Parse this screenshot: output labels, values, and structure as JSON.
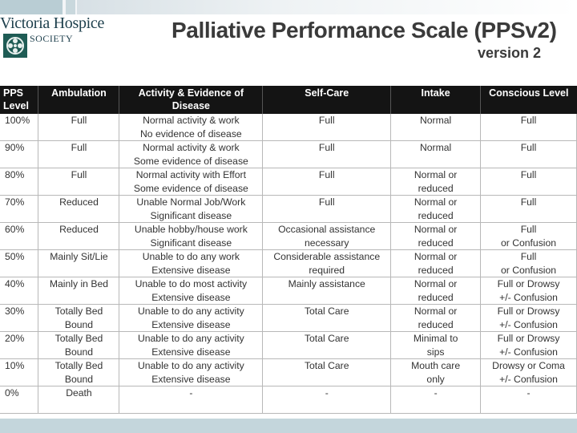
{
  "logo": {
    "name": "Victoria Hospice",
    "society": "SOCIETY",
    "emblem": "hospice-emblem-icon"
  },
  "title": "Palliative Performance Scale (PPSv2)",
  "subtitle": "version 2",
  "table": {
    "headers": [
      [
        "PPS",
        "Level"
      ],
      [
        "Ambulation",
        ""
      ],
      [
        "Activity & Evidence of",
        "Disease"
      ],
      [
        "Self-Care",
        ""
      ],
      [
        "Intake",
        ""
      ],
      [
        "Conscious Level",
        ""
      ]
    ],
    "rows": [
      [
        [
          "100%",
          ""
        ],
        [
          "Full",
          ""
        ],
        [
          "Normal activity & work",
          "No evidence of disease"
        ],
        [
          "Full",
          ""
        ],
        [
          "Normal",
          ""
        ],
        [
          "Full",
          ""
        ]
      ],
      [
        [
          "90%",
          ""
        ],
        [
          "Full",
          ""
        ],
        [
          "Normal activity & work",
          "Some evidence of disease"
        ],
        [
          "Full",
          ""
        ],
        [
          "Normal",
          ""
        ],
        [
          "Full",
          ""
        ]
      ],
      [
        [
          "80%",
          ""
        ],
        [
          "Full",
          ""
        ],
        [
          "Normal activity with Effort",
          "Some evidence of disease"
        ],
        [
          "Full",
          ""
        ],
        [
          "Normal or",
          "reduced"
        ],
        [
          "Full",
          ""
        ]
      ],
      [
        [
          "70%",
          ""
        ],
        [
          "Reduced",
          ""
        ],
        [
          "Unable Normal Job/Work",
          "Significant disease"
        ],
        [
          "Full",
          ""
        ],
        [
          "Normal or",
          "reduced"
        ],
        [
          "Full",
          ""
        ]
      ],
      [
        [
          "60%",
          ""
        ],
        [
          "Reduced",
          ""
        ],
        [
          "Unable hobby/house work",
          "Significant disease"
        ],
        [
          "Occasional assistance",
          "necessary"
        ],
        [
          "Normal or",
          "reduced"
        ],
        [
          "Full",
          "or Confusion"
        ]
      ],
      [
        [
          "50%",
          ""
        ],
        [
          "Mainly Sit/Lie",
          ""
        ],
        [
          "Unable to do any work",
          "Extensive disease"
        ],
        [
          "Considerable assistance",
          "required"
        ],
        [
          "Normal or",
          "reduced"
        ],
        [
          "Full",
          "or Confusion"
        ]
      ],
      [
        [
          "40%",
          ""
        ],
        [
          "Mainly in Bed",
          ""
        ],
        [
          "Unable to do most activity",
          "Extensive disease"
        ],
        [
          "Mainly assistance",
          ""
        ],
        [
          "Normal or",
          "reduced"
        ],
        [
          "Full or Drowsy",
          "+/- Confusion"
        ]
      ],
      [
        [
          "30%",
          ""
        ],
        [
          "Totally Bed",
          "Bound"
        ],
        [
          "Unable to do any activity",
          "Extensive disease"
        ],
        [
          "Total Care",
          ""
        ],
        [
          "Normal or",
          "reduced"
        ],
        [
          "Full or Drowsy",
          "+/- Confusion"
        ]
      ],
      [
        [
          "20%",
          ""
        ],
        [
          "Totally Bed",
          "Bound"
        ],
        [
          "Unable to do any activity",
          "Extensive disease"
        ],
        [
          "Total Care",
          ""
        ],
        [
          "Minimal to",
          "sips"
        ],
        [
          "Full or Drowsy",
          "+/- Confusion"
        ]
      ],
      [
        [
          "10%",
          ""
        ],
        [
          "Totally Bed",
          "Bound"
        ],
        [
          "Unable to do any activity",
          "Extensive disease"
        ],
        [
          "Total Care",
          ""
        ],
        [
          "Mouth care",
          "only"
        ],
        [
          "Drowsy or Coma",
          "+/- Confusion"
        ]
      ],
      [
        [
          "0%",
          ""
        ],
        [
          "Death",
          ""
        ],
        [
          "-",
          ""
        ],
        [
          "-",
          ""
        ],
        [
          "-",
          ""
        ],
        [
          "-",
          ""
        ]
      ]
    ]
  },
  "colors": {
    "header_bg": "#141414",
    "header_text": "#ffffff",
    "title": "#3a3a3a",
    "logo": "#1d3f4c",
    "accent_strip": "#c4d6dc"
  }
}
